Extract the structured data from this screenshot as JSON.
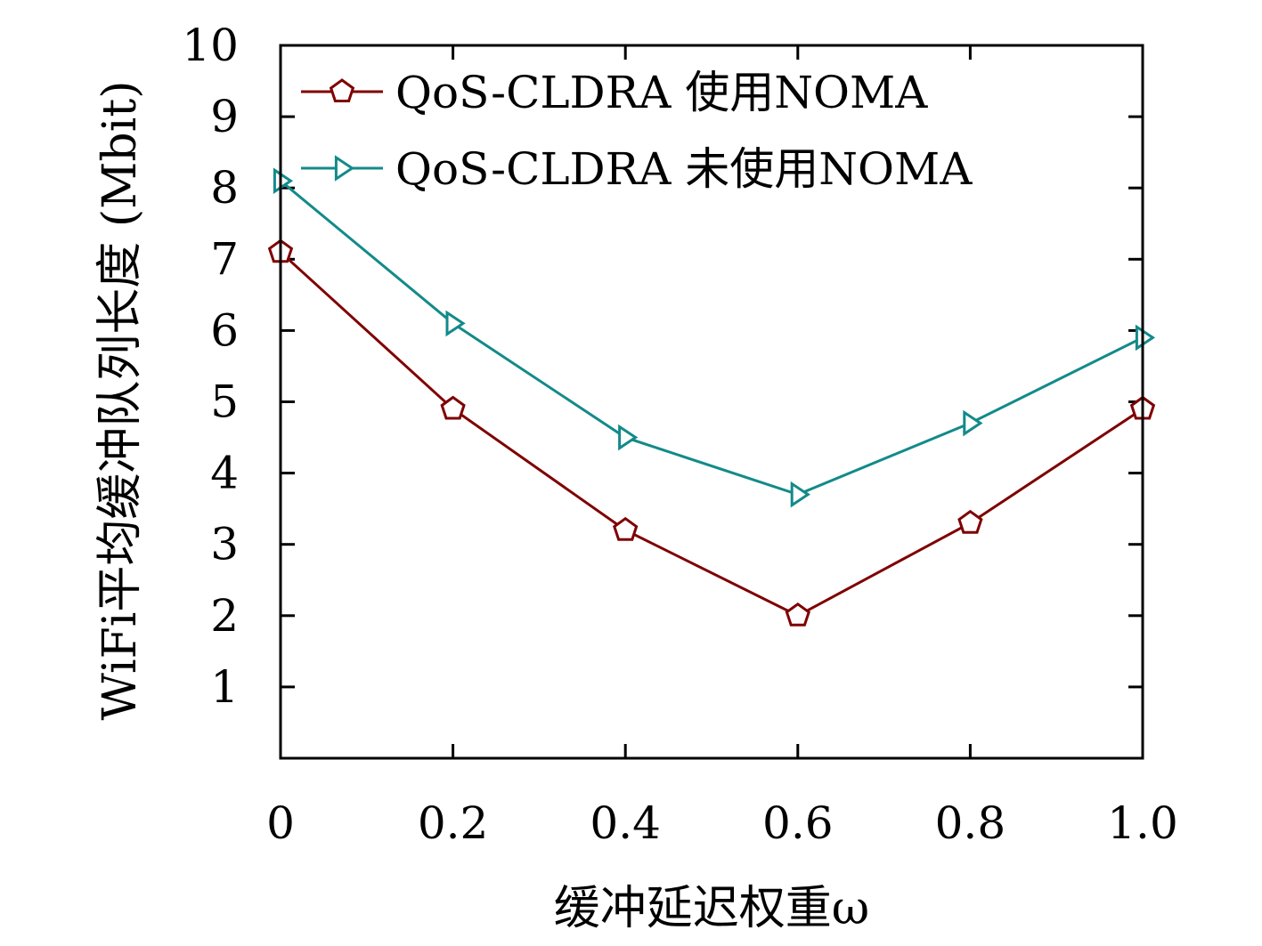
{
  "chart_data": {
    "type": "line",
    "xlabel": "缓冲延迟权重ω",
    "ylabel": "WiFi平均缓冲队列长度 (Mbit)",
    "x": [
      0,
      0.2,
      0.4,
      0.6,
      0.8,
      1.0
    ],
    "x_tick_labels": [
      "0",
      "0.2",
      "0.4",
      "0.6",
      "0.8",
      "1.0"
    ],
    "y_tick_labels": [
      "1",
      "2",
      "3",
      "4",
      "5",
      "6",
      "7",
      "8",
      "9",
      "10"
    ],
    "xlim": [
      0,
      1.0
    ],
    "ylim": [
      0,
      10
    ],
    "grid": false,
    "legend_position": "top-left",
    "series": [
      {
        "name": "QoS-CLDRA 使用NOMA",
        "values": [
          7.1,
          4.9,
          3.2,
          2.0,
          3.3,
          4.9
        ],
        "color": "#7f0000",
        "marker": "pentagon"
      },
      {
        "name": "QoS-CLDRA 未使用NOMA",
        "values": [
          8.1,
          6.1,
          4.5,
          3.7,
          4.7,
          5.9
        ],
        "color": "#138a8a",
        "marker": "triangle-right"
      }
    ]
  }
}
